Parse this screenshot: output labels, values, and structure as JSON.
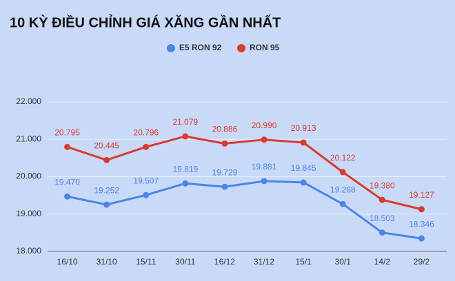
{
  "chart_data": {
    "type": "line",
    "title": "10 KỲ ĐIỀU CHỈNH GIÁ XĂNG GẦN NHẤT",
    "categories": [
      "16/10",
      "31/10",
      "15/11",
      "30/11",
      "16/12",
      "31/12",
      "15/1",
      "30/1",
      "14/2",
      "29/2"
    ],
    "series": [
      {
        "name": "E5 RON 92",
        "color": "#4a86e8",
        "values": [
          19470,
          19252,
          19507,
          19819,
          19729,
          19881,
          19845,
          19268,
          18503,
          18346
        ],
        "value_labels": [
          "19.470",
          "19.252",
          "19.507",
          "19.819",
          "19.729",
          "19.881",
          "19.845",
          "19.268",
          "18.503",
          "18.346"
        ]
      },
      {
        "name": "RON 95",
        "color": "#d93a32",
        "values": [
          20795,
          20445,
          20796,
          21079,
          20886,
          20990,
          20913,
          20122,
          19380,
          19127
        ],
        "value_labels": [
          "20.795",
          "20.445",
          "20.796",
          "21.079",
          "20.886",
          "20.990",
          "20.913",
          "20.122",
          "19.380",
          "19.127"
        ]
      }
    ],
    "ylim": [
      18000,
      22000
    ],
    "yticks": [
      {
        "value": 18000,
        "label": "18.000"
      },
      {
        "value": 19000,
        "label": "19.000"
      },
      {
        "value": 20000,
        "label": "20.000"
      },
      {
        "value": 21000,
        "label": "21.000"
      },
      {
        "value": 22000,
        "label": "22.000"
      }
    ],
    "grid": true,
    "legend": "top"
  }
}
